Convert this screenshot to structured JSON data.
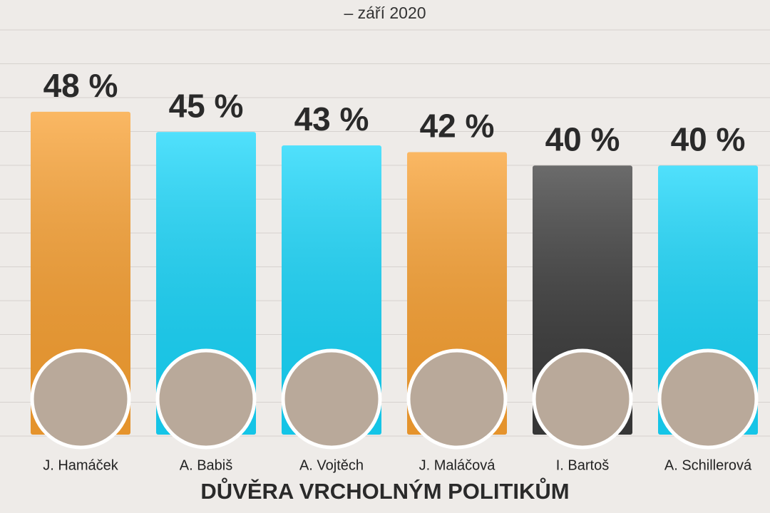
{
  "chart_data": {
    "type": "bar",
    "title": "DŮVĚRA VRCHOLNÝM POLITIKŮM",
    "subtitle": "– září 2020",
    "categories": [
      "J. Hamáček",
      "A. Babiš",
      "A. Vojtěch",
      "J. Maláčová",
      "I. Bartoš",
      "A. Schillerová"
    ],
    "values": [
      48,
      45,
      43,
      42,
      40,
      40
    ],
    "value_labels": [
      "48 %",
      "45 %",
      "43 %",
      "42 %",
      "40 %",
      "40 %"
    ],
    "colors": [
      "#f9a030",
      "#16d6fb",
      "#16d6fb",
      "#f9a030",
      "#3a3a3a",
      "#16d6fb"
    ]
  }
}
